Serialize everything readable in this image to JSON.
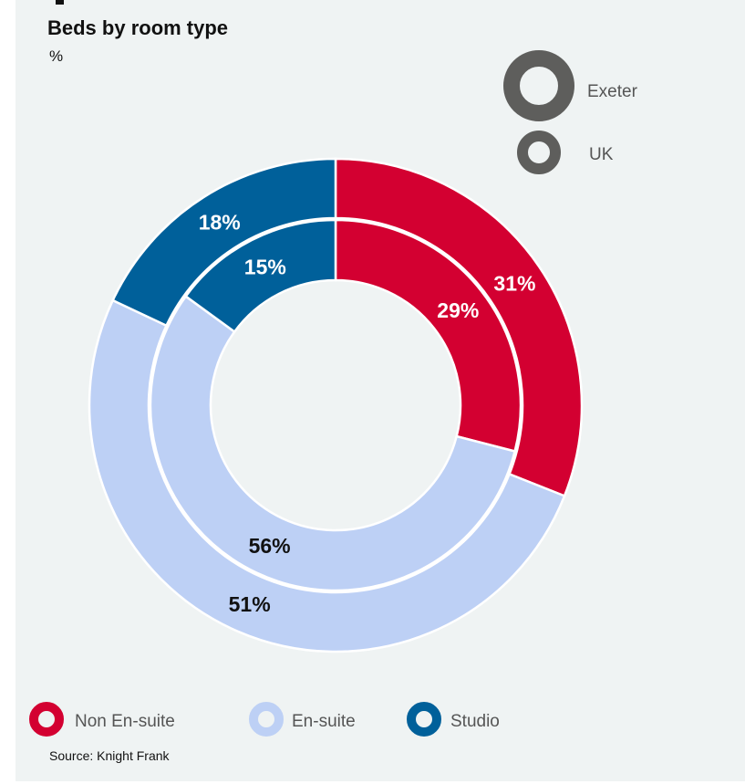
{
  "title": "Beds by room type",
  "unit": "%",
  "source": "Source: Knight Frank",
  "chart_data": {
    "type": "donut",
    "categories": [
      "Non En-suite",
      "En-suite",
      "Studio"
    ],
    "colors": [
      "#d30031",
      "#bdd0f5",
      "#00609a"
    ],
    "series": [
      {
        "name": "Exeter",
        "ring": "outer",
        "values": [
          31,
          51,
          18
        ],
        "label_colors": [
          "#ffffff",
          "#111111",
          "#ffffff"
        ]
      },
      {
        "name": "UK",
        "ring": "inner",
        "values": [
          29,
          56,
          15
        ],
        "label_colors": [
          "#ffffff",
          "#111111",
          "#ffffff"
        ]
      }
    ]
  },
  "ring_legend": [
    "Exeter",
    "UK"
  ],
  "ring_legend_color": "#5e5e5c",
  "category_legend": [
    "Non En-suite",
    "En-suite",
    "Studio"
  ]
}
